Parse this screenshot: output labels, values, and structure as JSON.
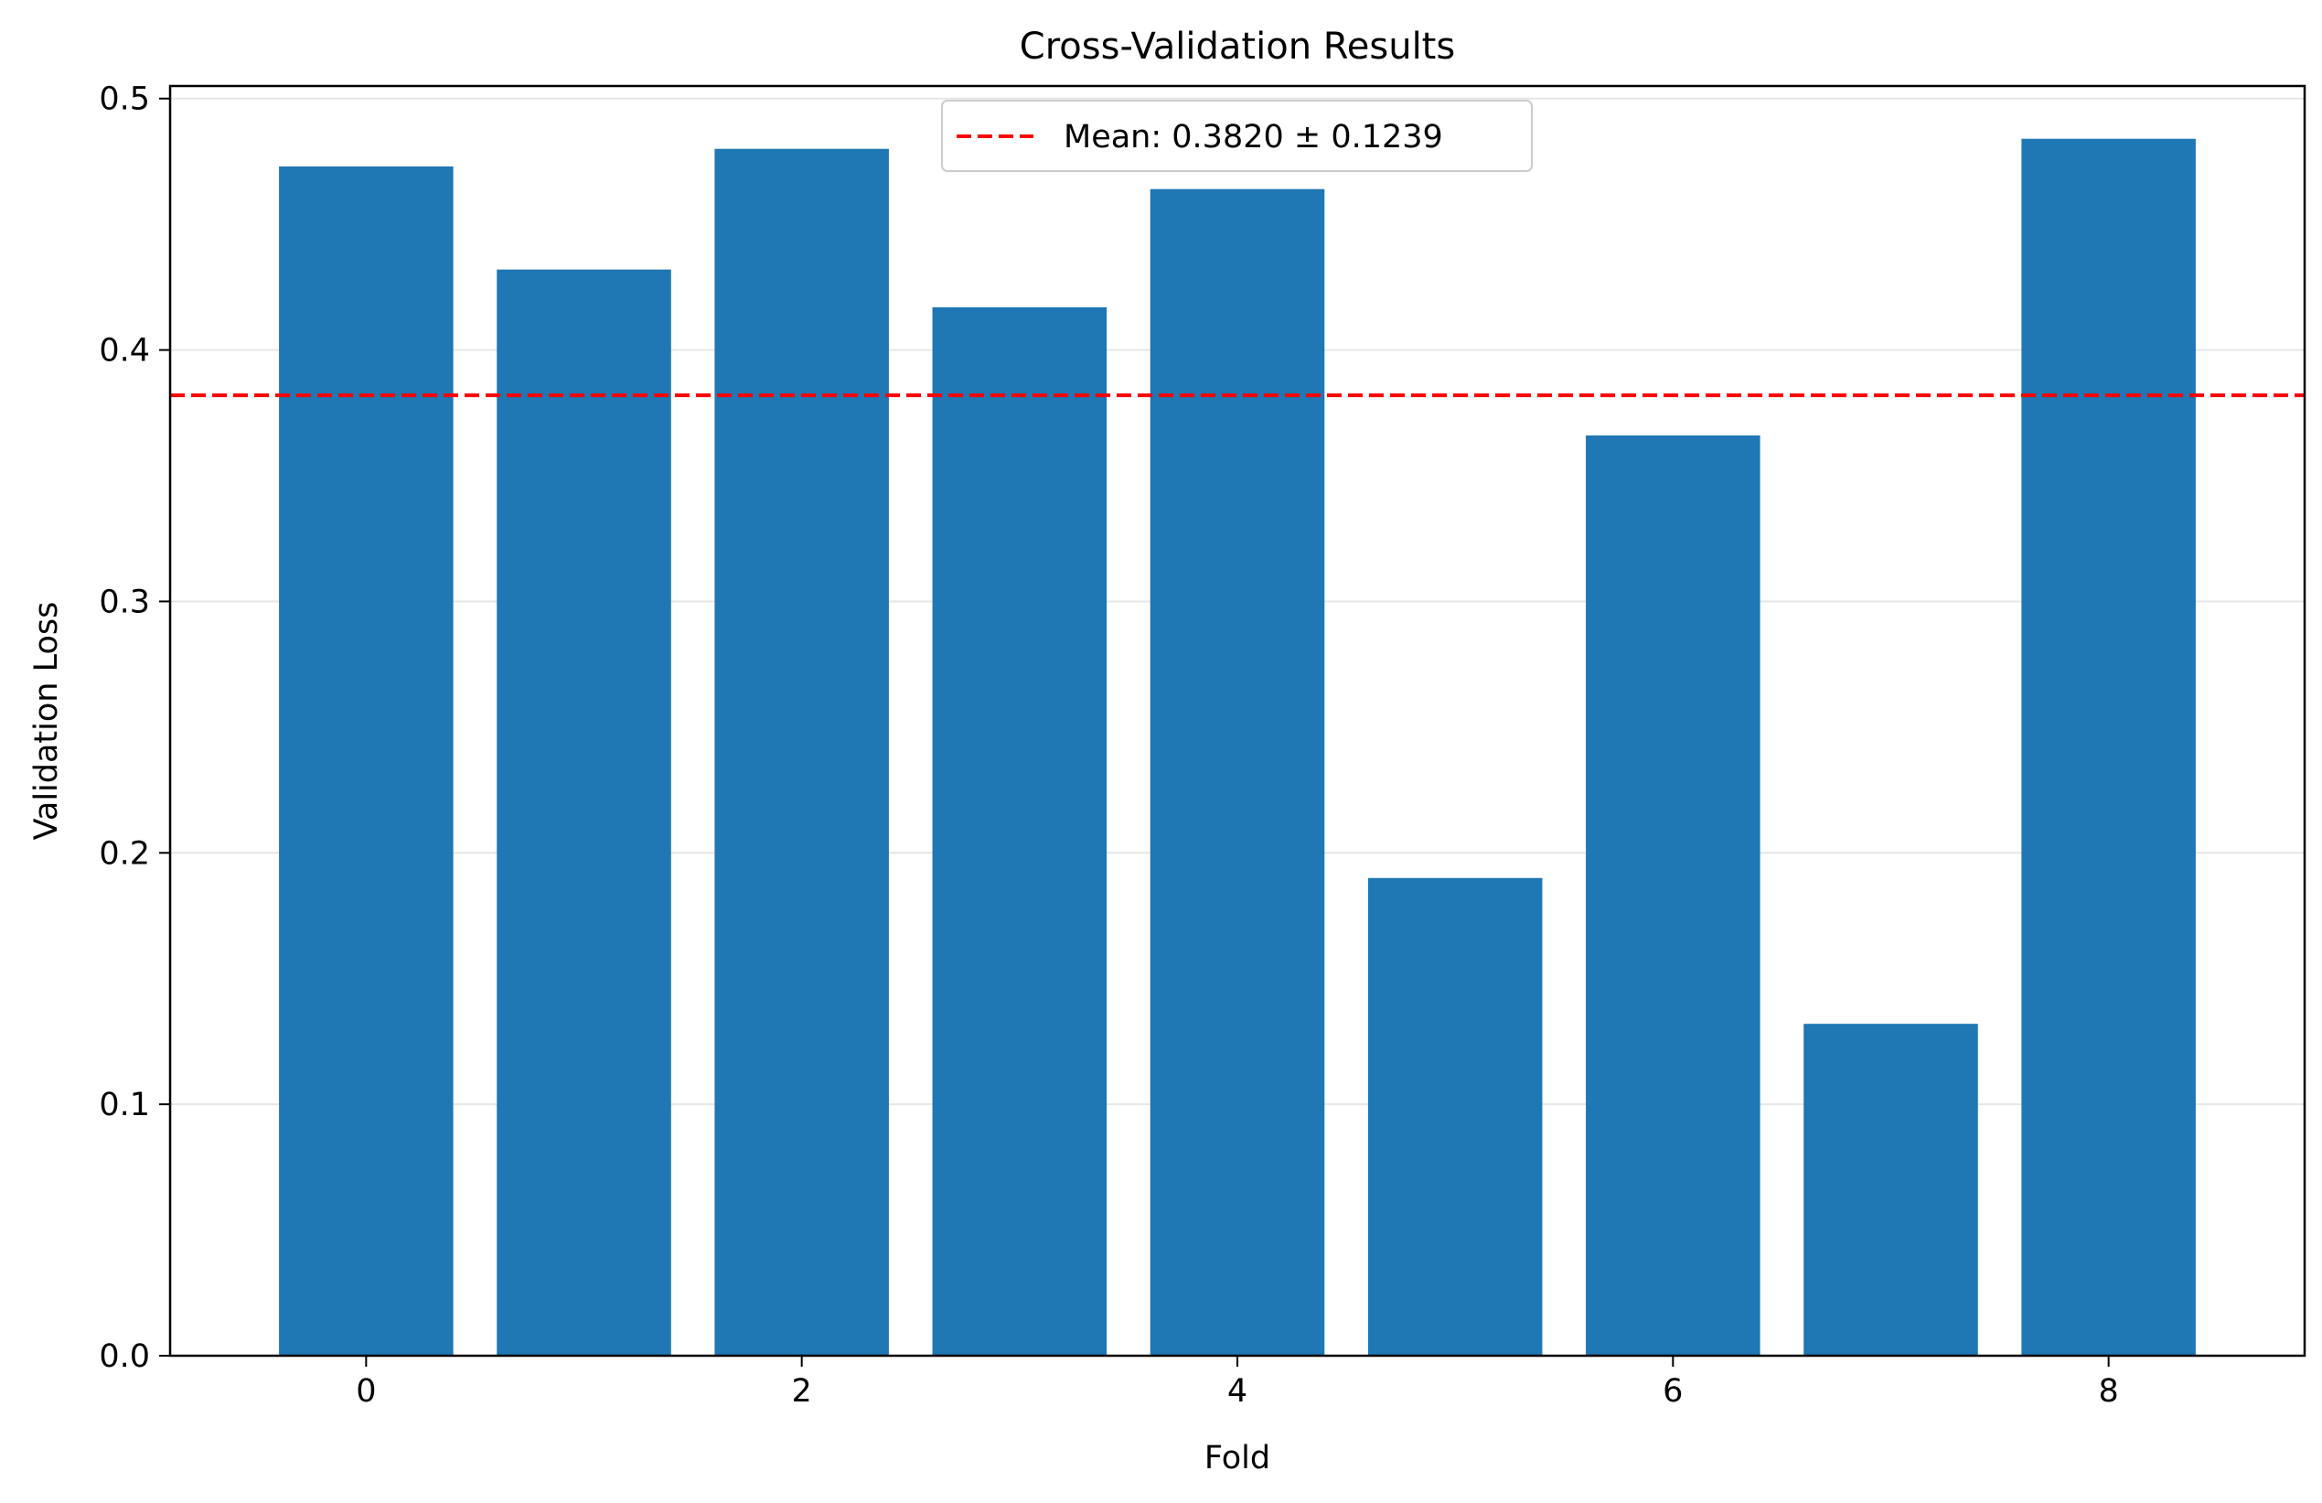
{
  "chart_data": {
    "type": "bar",
    "title": "Cross-Validation Results",
    "xlabel": "Fold",
    "ylabel": "Validation Loss",
    "categories": [
      0,
      1,
      2,
      3,
      4,
      5,
      6,
      7,
      8
    ],
    "values": [
      0.473,
      0.432,
      0.48,
      0.417,
      0.464,
      0.19,
      0.366,
      0.132,
      0.484
    ],
    "xlim": [
      -0.9,
      8.9
    ],
    "ylim": [
      0,
      0.505
    ],
    "x_ticks": [
      0,
      2,
      4,
      6,
      8
    ],
    "y_ticks": [
      0.0,
      0.1,
      0.2,
      0.3,
      0.4,
      0.5
    ],
    "y_tick_labels": [
      "0.0",
      "0.1",
      "0.2",
      "0.3",
      "0.4",
      "0.5"
    ],
    "bar_color": "#1f77b4",
    "grid": "y",
    "mean_line": {
      "value": 0.382,
      "color": "#ff0000",
      "style": "dashed"
    },
    "legend": {
      "placement": "upper-center",
      "entries": [
        {
          "label": "Mean: 0.3820 ± 0.1239",
          "color": "#ff0000",
          "style": "dashed"
        }
      ]
    }
  }
}
